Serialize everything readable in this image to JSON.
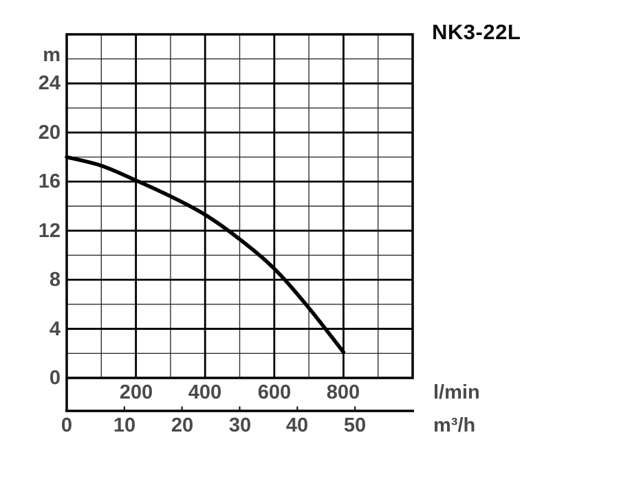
{
  "title": "NK3-22L",
  "axes": {
    "y": {
      "unit": "m",
      "tick_values": [
        24,
        20,
        16,
        12,
        8,
        4,
        0
      ]
    },
    "lmin": {
      "unit": "l/min",
      "tick_values": [
        200,
        400,
        600,
        800
      ]
    },
    "m3h": {
      "unit": "m³/h",
      "tick_values": [
        0,
        10,
        20,
        30,
        40,
        50
      ]
    }
  },
  "chart_data": {
    "type": "line",
    "title": "NK3-22L",
    "ylabel": "m",
    "xlabel": "l/min",
    "x2label": "m³/h",
    "xlim": [
      0,
      1000
    ],
    "ylim": [
      0,
      28
    ],
    "grid": "on",
    "x_minor_step": 100,
    "x_major_step": 200,
    "y_minor_step": 2,
    "y_major_step": 4,
    "x2_ticks": [
      0,
      10,
      20,
      30,
      40,
      50
    ],
    "x2_to_x_factor": 16.6667,
    "series": [
      {
        "name": "NK3-22L pump head curve",
        "x_lmin": [
          0,
          100,
          200,
          300,
          400,
          500,
          600,
          700,
          800
        ],
        "y_m": [
          18.0,
          17.3,
          16.1,
          14.8,
          13.3,
          11.3,
          8.9,
          5.7,
          2.1
        ]
      }
    ]
  },
  "colors": {
    "background": "#ffffff",
    "curve": "#000000",
    "grid_minor": "#2e2e2e",
    "grid_major": "#000000",
    "frame": "#000000",
    "tick_label": "#4a4a4a",
    "title": "#0a0a0a"
  }
}
